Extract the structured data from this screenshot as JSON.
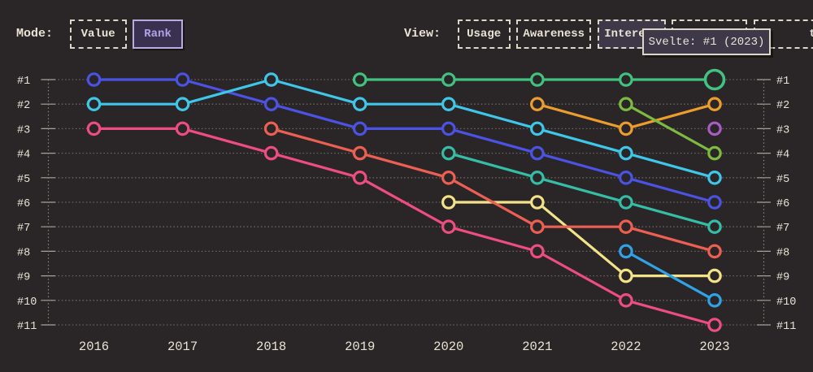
{
  "controls": {
    "mode": {
      "label": "Mode:",
      "buttons": [
        {
          "label": "Value",
          "active": false
        },
        {
          "label": "Rank",
          "active": true
        }
      ]
    },
    "view": {
      "label": "View:",
      "buttons": [
        {
          "label": "Usage",
          "active": false
        },
        {
          "label": "Awareness",
          "active": false
        },
        {
          "label": "Interest",
          "active": true
        },
        {
          "label": "",
          "active": false,
          "note": "fully hidden behind tooltip"
        },
        {
          "label": "ty",
          "active": false,
          "note": "partially hidden behind tooltip"
        }
      ]
    }
  },
  "tooltip": {
    "text": "Svelte: #1 (2023)"
  },
  "theme": {
    "background": "#2a2526",
    "text_cream": "#eae3d6",
    "accent_purple": "#b3a1e8",
    "grid_dot": "#6e6862",
    "tick": "#a8a197"
  },
  "chart_data": {
    "type": "line",
    "title": "",
    "xlabel": "",
    "ylabel": "",
    "x_labels": [
      "2016",
      "2017",
      "2018",
      "2019",
      "2020",
      "2021",
      "2022",
      "2023"
    ],
    "y_labels": [
      "#1",
      "#2",
      "#3",
      "#4",
      "#5",
      "#6",
      "#7",
      "#8",
      "#9",
      "#10",
      "#11"
    ],
    "y_inverted": true,
    "grid": "dotted-horizontal",
    "legend": "none (series unlabeled; hovered point identified by tooltip as Svelte)",
    "series": [
      {
        "id": "svelte",
        "label": "Svelte",
        "color": "#42c181",
        "points": [
          [
            2019,
            1
          ],
          [
            2020,
            1
          ],
          [
            2021,
            1
          ],
          [
            2022,
            1
          ],
          [
            2023,
            1
          ]
        ],
        "highlight_last": true
      },
      {
        "id": "series-blue",
        "label": "",
        "color": "#4a53e3",
        "points": [
          [
            2016,
            1
          ],
          [
            2017,
            1
          ],
          [
            2018,
            2
          ],
          [
            2019,
            3
          ],
          [
            2020,
            3
          ],
          [
            2021,
            4
          ],
          [
            2022,
            5
          ],
          [
            2023,
            6
          ]
        ]
      },
      {
        "id": "series-cyan",
        "label": "",
        "color": "#3fc6e8",
        "points": [
          [
            2016,
            2
          ],
          [
            2017,
            2
          ],
          [
            2018,
            1
          ],
          [
            2019,
            2
          ],
          [
            2020,
            2
          ],
          [
            2021,
            3
          ],
          [
            2022,
            4
          ],
          [
            2023,
            5
          ]
        ]
      },
      {
        "id": "series-pink",
        "label": "",
        "color": "#ee4d82",
        "points": [
          [
            2016,
            3
          ],
          [
            2017,
            3
          ],
          [
            2018,
            4
          ],
          [
            2019,
            5
          ],
          [
            2020,
            7
          ],
          [
            2021,
            8
          ],
          [
            2022,
            10
          ],
          [
            2023,
            11
          ]
        ]
      },
      {
        "id": "series-yellow",
        "label": "",
        "color": "#f3e388",
        "points": [
          [
            2020,
            6
          ],
          [
            2021,
            6
          ],
          [
            2022,
            9
          ],
          [
            2023,
            9
          ]
        ]
      },
      {
        "id": "series-salmon",
        "label": "",
        "color": "#ec6053",
        "points": [
          [
            2018,
            3
          ],
          [
            2019,
            4
          ],
          [
            2020,
            5
          ],
          [
            2021,
            7
          ],
          [
            2022,
            7
          ],
          [
            2023,
            8
          ]
        ]
      },
      {
        "id": "series-teal",
        "label": "",
        "color": "#35bda6",
        "points": [
          [
            2020,
            4
          ],
          [
            2021,
            5
          ],
          [
            2022,
            6
          ],
          [
            2023,
            7
          ]
        ]
      },
      {
        "id": "series-amber",
        "label": "",
        "color": "#eb9d2e",
        "points": [
          [
            2021,
            2
          ],
          [
            2022,
            3
          ],
          [
            2023,
            2
          ]
        ]
      },
      {
        "id": "series-lightgreen",
        "label": "",
        "color": "#7cbb40",
        "points": [
          [
            2022,
            2
          ],
          [
            2023,
            4
          ]
        ]
      },
      {
        "id": "series-skyblue",
        "label": "",
        "color": "#30a3e6",
        "points": [
          [
            2022,
            8
          ],
          [
            2023,
            10
          ]
        ]
      },
      {
        "id": "series-purple",
        "label": "",
        "color": "#a95cc3",
        "points": [
          [
            2023,
            3
          ]
        ]
      }
    ]
  }
}
